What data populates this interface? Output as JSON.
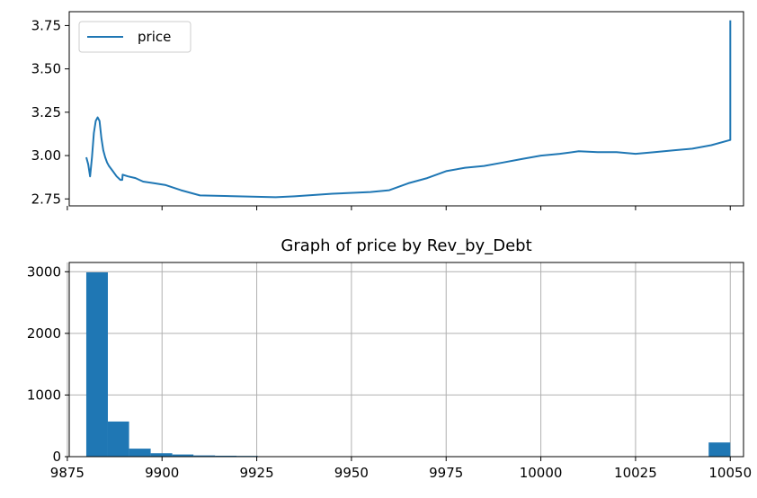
{
  "chart_data": [
    {
      "type": "line",
      "title": "",
      "xlabel": "",
      "ylabel": "",
      "xlim": [
        9875.5,
        10053.5
      ],
      "ylim": [
        2.71,
        3.83
      ],
      "xticks": [
        9875,
        9900,
        9925,
        9950,
        9975,
        10000,
        10025,
        10050
      ],
      "xtick_labels_shown": false,
      "yticks": [
        2.75,
        3.0,
        3.25,
        3.5,
        3.75
      ],
      "ytick_labels": [
        "2.75",
        "3.00",
        "3.25",
        "3.50",
        "3.75"
      ],
      "grid": false,
      "legend": "upper-left",
      "color": "#1f77b4",
      "series": [
        {
          "name": "price",
          "x": [
            9880,
            9880.5,
            9881,
            9881.5,
            9882,
            9882.5,
            9883,
            9883.5,
            9884,
            9884.5,
            9885,
            9885.5,
            9886,
            9887,
            9888,
            9889,
            9889.5,
            9889.6,
            9891,
            9893,
            9895,
            9898,
            9901,
            9905,
            9910,
            9920,
            9930,
            9935,
            9945,
            9955,
            9960,
            9965,
            9970,
            9975,
            9980,
            9985,
            9990,
            9995,
            10000,
            10005,
            10010,
            10015,
            10020,
            10025,
            10030,
            10035,
            10040,
            10045,
            10050,
            10050,
            10050
          ],
          "y": [
            2.99,
            2.95,
            2.88,
            2.99,
            3.13,
            3.2,
            3.22,
            3.2,
            3.1,
            3.03,
            2.99,
            2.96,
            2.94,
            2.91,
            2.88,
            2.86,
            2.86,
            2.89,
            2.88,
            2.87,
            2.85,
            2.84,
            2.83,
            2.8,
            2.77,
            2.765,
            2.76,
            2.765,
            2.78,
            2.79,
            2.8,
            2.84,
            2.87,
            2.91,
            2.93,
            2.94,
            2.96,
            2.98,
            3.0,
            3.01,
            3.025,
            3.02,
            3.02,
            3.01,
            3.02,
            3.03,
            3.04,
            3.06,
            3.09,
            3.09,
            3.78
          ]
        }
      ]
    },
    {
      "type": "bar",
      "title": "Graph of price by Rev_by_Debt",
      "xlabel": "",
      "ylabel": "",
      "xlim": [
        9875.5,
        10053.5
      ],
      "ylim": [
        0,
        3150
      ],
      "xticks": [
        9875,
        9900,
        9925,
        9950,
        9975,
        10000,
        10025,
        10050
      ],
      "xtick_labels": [
        "9875",
        "9900",
        "9925",
        "9950",
        "9975",
        "10000",
        "10025",
        "10050"
      ],
      "yticks": [
        0,
        1000,
        2000,
        3000
      ],
      "ytick_labels": [
        "0",
        "1000",
        "2000",
        "3000"
      ],
      "grid": true,
      "color": "#1f77b4",
      "bins": [
        {
          "x0": 9880.0,
          "x1": 9885.7,
          "value": 2990
        },
        {
          "x0": 9885.7,
          "x1": 9891.3,
          "value": 570
        },
        {
          "x0": 9891.3,
          "x1": 9897.0,
          "value": 130
        },
        {
          "x0": 9897.0,
          "x1": 9902.7,
          "value": 55
        },
        {
          "x0": 9902.7,
          "x1": 9908.3,
          "value": 35
        },
        {
          "x0": 9908.3,
          "x1": 9914.0,
          "value": 20
        },
        {
          "x0": 9914.0,
          "x1": 9919.7,
          "value": 15
        },
        {
          "x0": 9919.7,
          "x1": 9925.3,
          "value": 12
        },
        {
          "x0": 10044.3,
          "x1": 10050.0,
          "value": 230
        }
      ]
    }
  ]
}
